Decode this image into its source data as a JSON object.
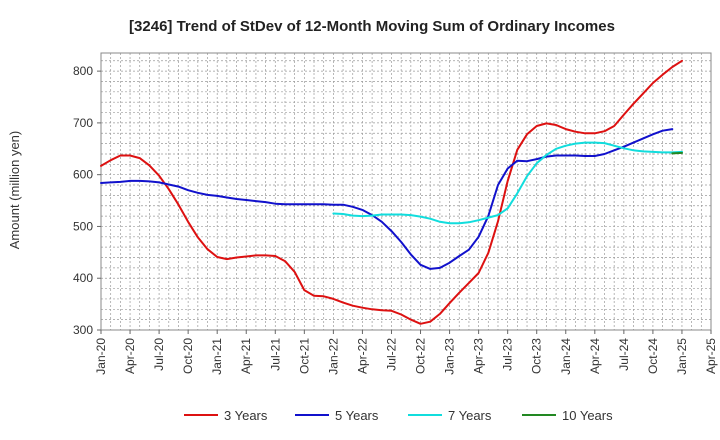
{
  "chart_data": {
    "type": "line",
    "title": "[3246]  Trend of StDev of 12-Month Moving Sum of Ordinary Incomes",
    "xlabel": "",
    "ylabel": "Amount (million yen)",
    "ylim": [
      300,
      835
    ],
    "yticks": [
      300,
      400,
      500,
      600,
      700,
      800
    ],
    "xrange": [
      "Jan-20",
      "Apr-25"
    ],
    "xtick_labels": [
      "Jan-20",
      "Apr-20",
      "Jul-20",
      "Oct-20",
      "Jan-21",
      "Apr-21",
      "Jul-21",
      "Oct-21",
      "Jan-22",
      "Apr-22",
      "Jul-22",
      "Oct-22",
      "Jan-23",
      "Apr-23",
      "Jul-23",
      "Oct-23",
      "Jan-24",
      "Apr-24",
      "Jul-24",
      "Oct-24",
      "Jan-25",
      "Apr-25"
    ],
    "grid": true,
    "legend_position": "bottom",
    "series": [
      {
        "name": "3 Years",
        "color": "#dd1111",
        "start": "Jan-20",
        "values": [
          617,
          628,
          637,
          637,
          632,
          618,
          598,
          572,
          542,
          509,
          479,
          456,
          441,
          437,
          440,
          442,
          444,
          444,
          443,
          433,
          412,
          377,
          366,
          365,
          360,
          353,
          347,
          343,
          340,
          338,
          337,
          330,
          320,
          312,
          316,
          331,
          352,
          372,
          391,
          410,
          449,
          510,
          588,
          648,
          678,
          694,
          699,
          696,
          688,
          683,
          680,
          680,
          684,
          694,
          716,
          737,
          757,
          777,
          793,
          808,
          820
        ]
      },
      {
        "name": "5 Years",
        "color": "#1111cc",
        "start": "Jan-20",
        "values": [
          584,
          585,
          586,
          588,
          588,
          587,
          585,
          581,
          577,
          570,
          565,
          561,
          559,
          556,
          553,
          551,
          549,
          547,
          544,
          543,
          543,
          543,
          543,
          543,
          542,
          542,
          538,
          532,
          522,
          509,
          491,
          470,
          446,
          426,
          418,
          420,
          430,
          443,
          455,
          480,
          520,
          580,
          612,
          627,
          626,
          630,
          635,
          637,
          637,
          637,
          636,
          636,
          640,
          647,
          654,
          662,
          670,
          678,
          685,
          688
        ]
      },
      {
        "name": "7 Years",
        "color": "#11dddd",
        "start": "Jan-22",
        "values": [
          525,
          524,
          521,
          520,
          521,
          523,
          523,
          523,
          522,
          519,
          515,
          509,
          506,
          506,
          508,
          512,
          517,
          522,
          535,
          564,
          597,
          622,
          638,
          650,
          656,
          660,
          662,
          662,
          661,
          656,
          651,
          647,
          645,
          644,
          643,
          643,
          644
        ]
      },
      {
        "name": "10 Years",
        "color": "#228822",
        "start": "Dec-24",
        "values": [
          641,
          642
        ]
      }
    ]
  }
}
